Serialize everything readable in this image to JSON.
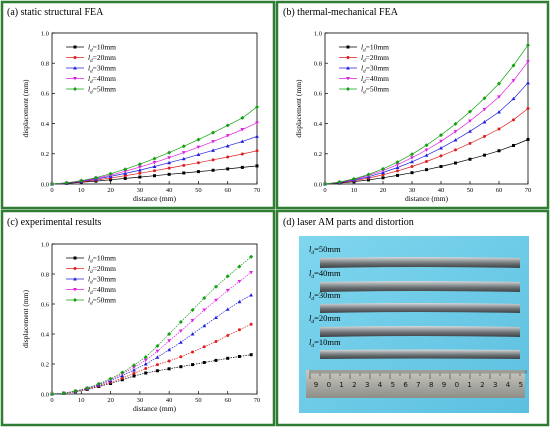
{
  "colors": {
    "border": "#2e7d32",
    "series": [
      "#000000",
      "#e02020",
      "#2020e0",
      "#e020e0",
      "#10a010"
    ]
  },
  "legend_entries": [
    {
      "label": "l",
      "sub": "d",
      "value": "=10mm"
    },
    {
      "label": "l",
      "sub": "d",
      "value": "=20mm"
    },
    {
      "label": "l",
      "sub": "d",
      "value": "=30mm"
    },
    {
      "label": "l",
      "sub": "d",
      "value": "=40mm"
    },
    {
      "label": "l",
      "sub": "d",
      "value": "=50mm"
    }
  ],
  "chart_data": [
    {
      "type": "line",
      "title": "(a) static structural FEA",
      "xlabel": "distance (mm)",
      "ylabel": "displacement (mm)",
      "xlim": [
        0,
        70
      ],
      "ylim": [
        0,
        1.0
      ],
      "xticks": [
        0,
        10,
        20,
        30,
        40,
        50,
        60,
        70
      ],
      "yticks": [
        0.0,
        0.2,
        0.4,
        0.6,
        0.8,
        1.0
      ],
      "xtick_labels": [
        "0",
        "10",
        "20",
        "30",
        "40",
        "50",
        "60",
        "70"
      ],
      "ytick_labels": [
        "0.0",
        "0.2",
        "0.4",
        "0.6",
        "0.8",
        "1.0"
      ],
      "legend": "top-left",
      "grid": false,
      "x": [
        0,
        5,
        10,
        15,
        20,
        25,
        30,
        35,
        40,
        45,
        50,
        55,
        60,
        65,
        70
      ],
      "series": [
        {
          "values": [
            0,
            0.004,
            0.011,
            0.019,
            0.028,
            0.037,
            0.046,
            0.055,
            0.064,
            0.073,
            0.082,
            0.091,
            0.1,
            0.11,
            0.12
          ]
        },
        {
          "values": [
            0,
            0.005,
            0.014,
            0.026,
            0.04,
            0.055,
            0.071,
            0.088,
            0.105,
            0.123,
            0.141,
            0.16,
            0.179,
            0.199,
            0.22
          ]
        },
        {
          "values": [
            0,
            0.006,
            0.017,
            0.032,
            0.05,
            0.07,
            0.092,
            0.116,
            0.141,
            0.167,
            0.195,
            0.223,
            0.252,
            0.282,
            0.315
          ]
        },
        {
          "values": [
            0,
            0.007,
            0.02,
            0.037,
            0.059,
            0.084,
            0.112,
            0.142,
            0.174,
            0.208,
            0.244,
            0.281,
            0.32,
            0.361,
            0.405
          ]
        },
        {
          "values": [
            0,
            0.008,
            0.022,
            0.042,
            0.068,
            0.098,
            0.131,
            0.168,
            0.208,
            0.25,
            0.294,
            0.34,
            0.388,
            0.438,
            0.51
          ]
        }
      ]
    },
    {
      "type": "line",
      "title": "(b) thermal-mechanical FEA",
      "xlabel": "distance (mm)",
      "ylabel": "displacement (mm)",
      "xlim": [
        0,
        70
      ],
      "ylim": [
        0,
        1.0
      ],
      "xticks": [
        0,
        10,
        20,
        30,
        40,
        50,
        60,
        70
      ],
      "yticks": [
        0.0,
        0.2,
        0.4,
        0.6,
        0.8,
        1.0
      ],
      "xtick_labels": [
        "0",
        "10",
        "20",
        "30",
        "40",
        "50",
        "60",
        "70"
      ],
      "ytick_labels": [
        "0.0",
        "0.2",
        "0.4",
        "0.6",
        "0.8",
        "1.0"
      ],
      "legend": "top-left",
      "grid": false,
      "x": [
        0,
        5,
        10,
        15,
        20,
        25,
        30,
        35,
        40,
        45,
        50,
        55,
        60,
        65,
        70
      ],
      "series": [
        {
          "values": [
            0,
            0.006,
            0.015,
            0.027,
            0.041,
            0.057,
            0.075,
            0.095,
            0.116,
            0.139,
            0.164,
            0.191,
            0.22,
            0.255,
            0.295
          ]
        },
        {
          "values": [
            0,
            0.008,
            0.021,
            0.039,
            0.061,
            0.087,
            0.116,
            0.149,
            0.186,
            0.226,
            0.269,
            0.315,
            0.364,
            0.425,
            0.5
          ]
        },
        {
          "values": [
            0,
            0.01,
            0.026,
            0.048,
            0.076,
            0.109,
            0.147,
            0.19,
            0.238,
            0.291,
            0.349,
            0.411,
            0.477,
            0.565,
            0.67
          ]
        },
        {
          "values": [
            0,
            0.011,
            0.03,
            0.056,
            0.089,
            0.128,
            0.174,
            0.225,
            0.283,
            0.347,
            0.417,
            0.494,
            0.577,
            0.685,
            0.81
          ]
        },
        {
          "values": [
            0,
            0.013,
            0.034,
            0.063,
            0.1,
            0.145,
            0.197,
            0.257,
            0.324,
            0.398,
            0.479,
            0.568,
            0.665,
            0.785,
            0.92
          ]
        }
      ]
    },
    {
      "type": "line",
      "title": "(c) experimental results",
      "xlabel": "distance (mm)",
      "ylabel": "displacement (mm)",
      "xlim": [
        0,
        70
      ],
      "ylim": [
        0,
        1.0
      ],
      "xticks": [
        0,
        10,
        20,
        30,
        40,
        50,
        60,
        70
      ],
      "yticks": [
        0.0,
        0.2,
        0.4,
        0.6,
        0.8,
        1.0
      ],
      "xtick_labels": [
        "0",
        "10",
        "20",
        "30",
        "40",
        "50",
        "60",
        "70"
      ],
      "ytick_labels": [
        "0.0",
        "0.2",
        "0.4",
        "0.6",
        "0.8",
        "1.0"
      ],
      "legend": "top-left",
      "grid": false,
      "x": [
        0,
        4,
        8,
        12,
        16,
        20,
        24,
        28,
        32,
        36,
        40,
        44,
        48,
        52,
        56,
        60,
        64,
        68
      ],
      "series": [
        {
          "values": [
            0,
            0.005,
            0.015,
            0.03,
            0.05,
            0.07,
            0.095,
            0.12,
            0.14,
            0.155,
            0.168,
            0.182,
            0.196,
            0.21,
            0.224,
            0.238,
            0.25,
            0.262
          ]
        },
        {
          "values": [
            0,
            0.005,
            0.016,
            0.032,
            0.054,
            0.078,
            0.106,
            0.138,
            0.17,
            0.196,
            0.22,
            0.248,
            0.28,
            0.315,
            0.35,
            0.39,
            0.428,
            0.465
          ]
        },
        {
          "values": [
            0,
            0.006,
            0.018,
            0.036,
            0.06,
            0.088,
            0.122,
            0.16,
            0.2,
            0.245,
            0.295,
            0.345,
            0.4,
            0.455,
            0.51,
            0.565,
            0.615,
            0.66
          ]
        },
        {
          "values": [
            0,
            0.006,
            0.019,
            0.038,
            0.064,
            0.096,
            0.134,
            0.178,
            0.225,
            0.285,
            0.355,
            0.42,
            0.49,
            0.56,
            0.625,
            0.69,
            0.75,
            0.81
          ]
        },
        {
          "values": [
            0,
            0.006,
            0.02,
            0.04,
            0.068,
            0.102,
            0.143,
            0.192,
            0.246,
            0.32,
            0.4,
            0.48,
            0.56,
            0.64,
            0.715,
            0.785,
            0.85,
            0.915
          ]
        }
      ]
    }
  ],
  "photo_panel": {
    "title": "(d) laser AM parts and distortion",
    "labels": [
      {
        "label": "l",
        "sub": "d",
        "value": "=50mm"
      },
      {
        "label": "l",
        "sub": "d",
        "value": "=40mm"
      },
      {
        "label": "l",
        "sub": "d",
        "value": "=30mm"
      },
      {
        "label": "l",
        "sub": "d",
        "value": "=20mm"
      },
      {
        "label": "l",
        "sub": "d",
        "value": "=10mm"
      }
    ],
    "ruler_numbers": [
      "9",
      "0",
      "1",
      "2",
      "3",
      "4",
      "5",
      "6",
      "7",
      "8",
      "9",
      "0",
      "1",
      "2",
      "3",
      "4",
      "5"
    ]
  }
}
